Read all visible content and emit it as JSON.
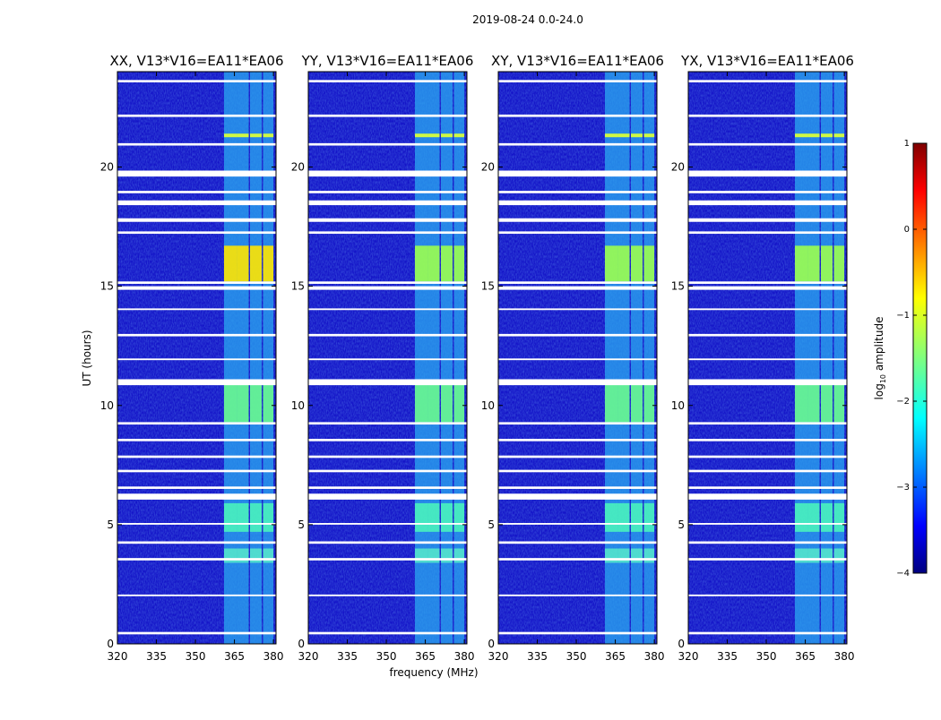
{
  "chart_data": {
    "type": "heatmap",
    "suptitle": "2019-08-24 0.0-24.0",
    "xlabel": "frequency (MHz)",
    "ylabel": "UT (hours)",
    "xlim": [
      320,
      381
    ],
    "ylim": [
      0,
      24
    ],
    "xticks": [
      320,
      335,
      350,
      365,
      380
    ],
    "yticks": [
      0,
      5,
      10,
      15,
      20
    ],
    "panels": [
      {
        "title": "XX, V13*V16=EA11*EA06"
      },
      {
        "title": "YY, V13*V16=EA11*EA06"
      },
      {
        "title": "XY, V13*V16=EA11*EA06"
      },
      {
        "title": "YX, V13*V16=EA11*EA06"
      }
    ],
    "rfi_bands_mhz": [
      [
        361,
        366
      ],
      [
        366,
        370.5
      ],
      [
        371,
        375.5
      ],
      [
        376,
        380
      ]
    ],
    "flagged_intervals_ut": [
      [
        23.55,
        23.65
      ],
      [
        22.1,
        22.2
      ],
      [
        20.9,
        21.0
      ],
      [
        19.6,
        19.85
      ],
      [
        18.9,
        19.0
      ],
      [
        18.4,
        18.6
      ],
      [
        17.7,
        17.85
      ],
      [
        17.2,
        17.3
      ],
      [
        15.1,
        15.2
      ],
      [
        14.85,
        15.0
      ],
      [
        14.0,
        14.07
      ],
      [
        12.9,
        13.0
      ],
      [
        11.9,
        11.97
      ],
      [
        10.85,
        11.1
      ],
      [
        9.2,
        9.3
      ],
      [
        8.5,
        8.6
      ],
      [
        7.8,
        7.9
      ],
      [
        7.2,
        7.3
      ],
      [
        6.5,
        6.6
      ],
      [
        6.05,
        6.3
      ],
      [
        5.0,
        5.07
      ],
      [
        4.2,
        4.3
      ],
      [
        3.5,
        3.6
      ],
      [
        2.0,
        2.07
      ],
      [
        0.4,
        0.5
      ]
    ],
    "colorbar": {
      "label": "log10 amplitude",
      "label_main": "log",
      "label_sub": "10",
      "label_tail": " amplitude",
      "range": [
        -4,
        1
      ],
      "ticks": [
        1,
        0,
        -1,
        -2,
        -3,
        -4
      ],
      "tick_labels": [
        "1",
        "0",
        "−1",
        "−2",
        "−3",
        "−4"
      ]
    }
  }
}
